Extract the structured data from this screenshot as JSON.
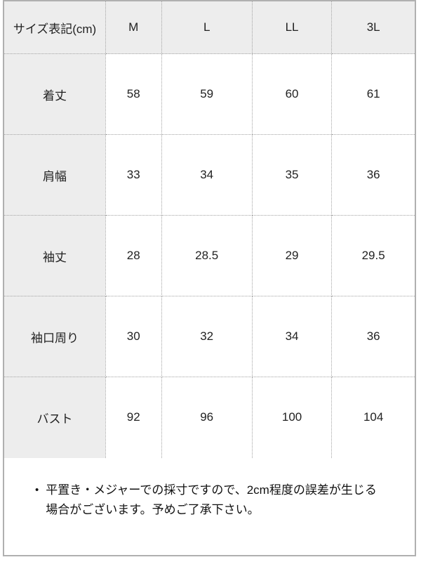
{
  "chart_data": {
    "type": "table",
    "columns": [
      "サイズ表記(cm)",
      "M",
      "L",
      "LL",
      "3L"
    ],
    "rows": [
      {
        "label": "着丈",
        "values": [
          "58",
          "59",
          "60",
          "61"
        ]
      },
      {
        "label": "肩幅",
        "values": [
          "33",
          "34",
          "35",
          "36"
        ]
      },
      {
        "label": "袖丈",
        "values": [
          "28",
          "28.5",
          "29",
          "29.5"
        ]
      },
      {
        "label": "袖口周り",
        "values": [
          "30",
          "32",
          "34",
          "36"
        ]
      },
      {
        "label": "バスト",
        "values": [
          "92",
          "96",
          "100",
          "104"
        ]
      }
    ],
    "note": {
      "bullet": "•",
      "text": "平置き・メジャーでの採寸ですので、2cm程度の誤差が生じる場合がございます。予めご了承下さい。"
    },
    "layout_hints": {
      "grid": "dotted internal borders, solid outer border",
      "header_row_shaded": true,
      "first_column_shaded": true
    }
  },
  "colors": {
    "shaded_cell_bg": "#ededed",
    "outer_border": "#b0b0b0",
    "dotted_border": "#a3a3a3",
    "text": "#222222"
  }
}
